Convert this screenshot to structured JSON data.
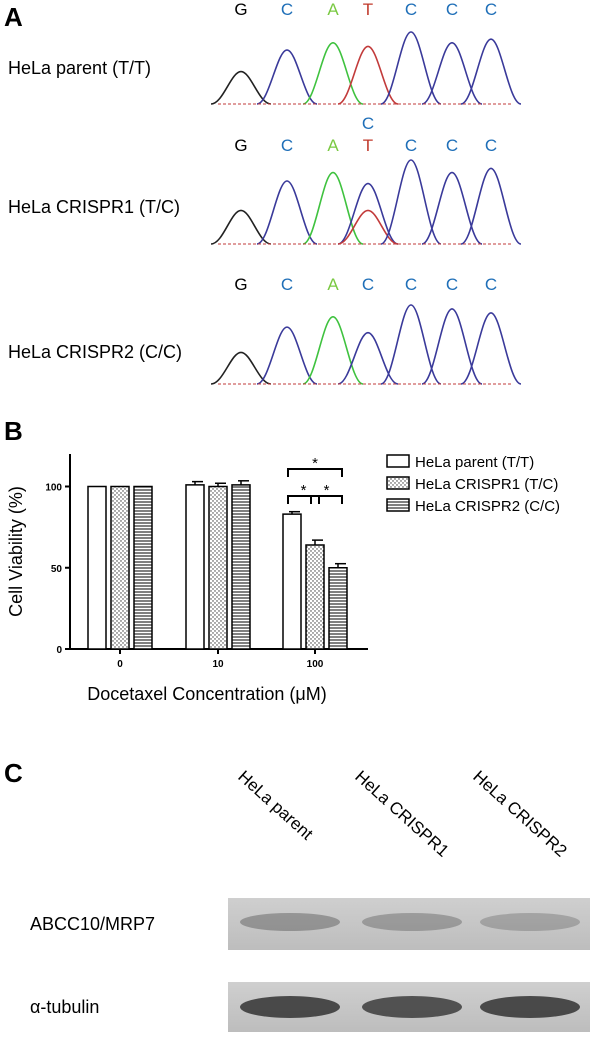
{
  "panels": {
    "a": "A",
    "b": "B",
    "c": "C"
  },
  "colors": {
    "G": "#000000",
    "C": "#1f6fb8",
    "A": "#7ac943",
    "T": "#c0392b",
    "trace_G": "#222222",
    "trace_C": "#3a3a9a",
    "trace_A": "#3fc23f",
    "trace_T": "#c23b3b"
  },
  "chromatograms": [
    {
      "label": "HeLa parent (T/T)",
      "bases": [
        [
          "G"
        ],
        [
          "C"
        ],
        [
          "A"
        ],
        [
          "T"
        ],
        [
          "C"
        ],
        [
          "C"
        ],
        [
          "C"
        ]
      ]
    },
    {
      "label": "HeLa CRISPR1 (T/C)",
      "bases": [
        [
          "G"
        ],
        [
          "C"
        ],
        [
          "A"
        ],
        [
          "C",
          "T"
        ],
        [
          "C"
        ],
        [
          "C"
        ],
        [
          "C"
        ]
      ]
    },
    {
      "label": "HeLa CRISPR2 (C/C)",
      "bases": [
        [
          "G"
        ],
        [
          "C"
        ],
        [
          "A"
        ],
        [
          "C"
        ],
        [
          "C"
        ],
        [
          "C"
        ],
        [
          "C"
        ]
      ]
    }
  ],
  "chart_data": {
    "type": "bar",
    "xlabel": "Docetaxel Concentration (μM)",
    "ylabel": "Cell Viability (%)",
    "ylim": [
      0,
      120
    ],
    "yticks": [
      0,
      50,
      100
    ],
    "categories": [
      "0",
      "10",
      "100"
    ],
    "series": [
      {
        "name": "HeLa parent (T/T)",
        "pattern": "open",
        "values": [
          100,
          101,
          83
        ],
        "errors": [
          0,
          2,
          1.5
        ]
      },
      {
        "name": "HeLa CRISPR1 (T/C)",
        "pattern": "dots",
        "values": [
          100,
          100,
          64
        ],
        "errors": [
          0,
          2,
          3
        ]
      },
      {
        "name": "HeLa CRISPR2 (C/C)",
        "pattern": "hlines",
        "values": [
          100,
          101,
          50
        ],
        "errors": [
          0,
          2.5,
          2.5
        ]
      }
    ],
    "significance": [
      {
        "category": "100",
        "from": 0,
        "to": 2,
        "label": "*"
      },
      {
        "category": "100",
        "from": 0,
        "to": 1,
        "label": "*"
      },
      {
        "category": "100",
        "from": 1,
        "to": 2,
        "label": "*"
      }
    ],
    "legend_position": "right"
  },
  "western_blot": {
    "lanes": [
      "HeLa parent",
      "HeLa CRISPR1",
      "HeLa CRISPR2"
    ],
    "rows": [
      {
        "label": "ABCC10/MRP7",
        "intensities": [
          0.35,
          0.3,
          0.25
        ]
      },
      {
        "label": "α-tubulin",
        "intensities": [
          0.85,
          0.8,
          0.85
        ]
      }
    ]
  }
}
